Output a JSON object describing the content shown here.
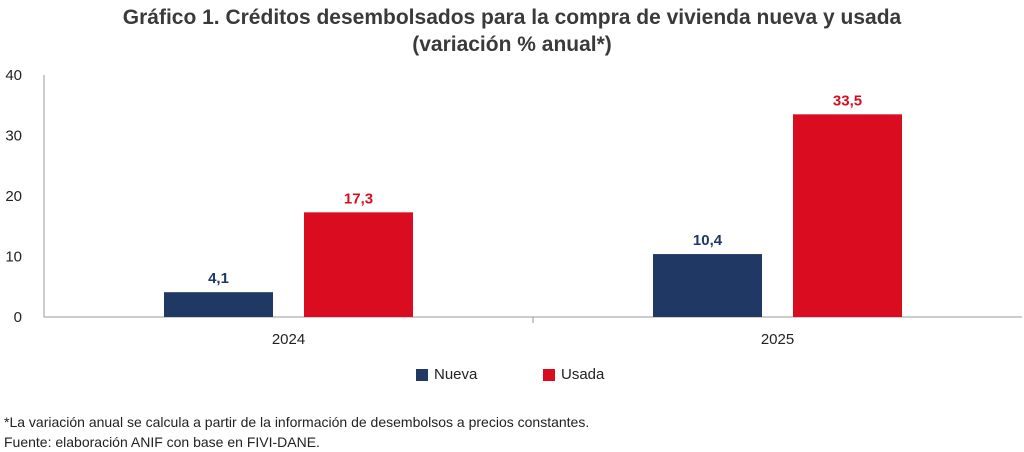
{
  "title_line1": "Gráfico 1. Créditos desembolsados para la compra de vivienda nueva y usada",
  "title_line2": "(variación % anual*)",
  "chart_data": {
    "type": "bar",
    "categories": [
      "2024",
      "2025"
    ],
    "series": [
      {
        "name": "Nueva",
        "values": [
          4.1,
          10.4
        ],
        "labels": [
          "4,1",
          "10,4"
        ],
        "color": "#1f3864"
      },
      {
        "name": "Usada",
        "values": [
          17.3,
          33.5
        ],
        "labels": [
          "17,3",
          "33,5"
        ],
        "color": "#d90d1f"
      }
    ],
    "ylim": [
      0,
      40
    ],
    "yticks": [
      "0",
      "10",
      "20",
      "30",
      "40"
    ],
    "legend_position": "bottom",
    "grid": false
  },
  "notes": {
    "footnote": "*La variación anual se calcula a partir de la información de desembolsos a precios constantes.",
    "source": "Fuente: elaboración ANIF con base en FIVI-DANE."
  }
}
